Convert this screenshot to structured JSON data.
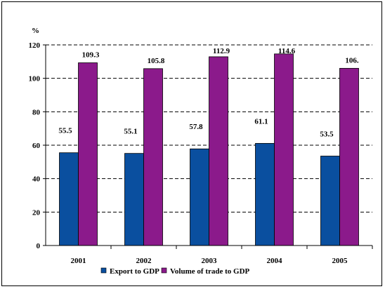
{
  "chart_data": {
    "type": "bar",
    "title": "",
    "xlabel": "",
    "ylabel": "%",
    "categories": [
      "2001",
      "2002",
      "2003",
      "2004",
      "2005"
    ],
    "series": [
      {
        "name": "Export to GDP",
        "values": [
          55.5,
          55.1,
          57.8,
          61.1,
          53.5
        ],
        "labels": [
          "55.5",
          "55.1",
          "57.8",
          "61.1",
          "53.5"
        ],
        "color": "#0a4f9f"
      },
      {
        "name": "Volume of trade to GDP",
        "values": [
          109.3,
          105.8,
          112.9,
          114.6,
          106.0
        ],
        "labels": [
          "109.3",
          "105.8",
          "112.9",
          "114.6",
          "106."
        ],
        "color": "#8b1a8b"
      }
    ],
    "ylim": [
      0,
      120
    ],
    "yticks": [
      "0",
      "20",
      "40",
      "60",
      "80",
      "100",
      "120"
    ],
    "grid": true,
    "legend": "bottom"
  }
}
